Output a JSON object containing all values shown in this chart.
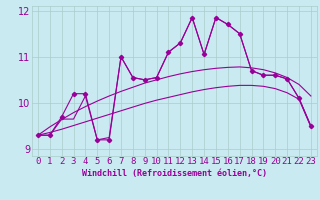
{
  "background_color": "#c8eaf0",
  "line_color": "#990099",
  "xlabel": "Windchill (Refroidissement éolien,°C)",
  "x_values": [
    0,
    1,
    2,
    3,
    4,
    5,
    6,
    7,
    8,
    9,
    10,
    11,
    12,
    13,
    14,
    15,
    16,
    17,
    18,
    19,
    20,
    21,
    22,
    23
  ],
  "line_marked": [
    9.3,
    9.3,
    9.7,
    10.2,
    10.2,
    9.2,
    9.2,
    11.0,
    10.55,
    10.5,
    10.55,
    11.1,
    11.3,
    11.85,
    11.05,
    11.85,
    11.7,
    11.5,
    10.7,
    10.6,
    10.6,
    10.52,
    10.1,
    9.5
  ],
  "line_nomark": [
    9.3,
    9.3,
    9.65,
    9.65,
    10.15,
    9.2,
    9.25,
    11.0,
    10.55,
    10.5,
    10.55,
    11.1,
    11.3,
    11.85,
    11.05,
    11.85,
    11.7,
    11.5,
    10.7,
    10.6,
    10.6,
    10.52,
    10.1,
    9.5
  ],
  "line_smooth_hi": [
    9.3,
    9.48,
    9.64,
    9.79,
    9.92,
    10.04,
    10.15,
    10.25,
    10.34,
    10.43,
    10.5,
    10.57,
    10.63,
    10.68,
    10.72,
    10.75,
    10.77,
    10.78,
    10.76,
    10.72,
    10.65,
    10.55,
    10.4,
    10.15
  ],
  "line_smooth_lo": [
    9.3,
    9.36,
    9.43,
    9.51,
    9.59,
    9.67,
    9.75,
    9.83,
    9.91,
    9.99,
    10.06,
    10.12,
    10.18,
    10.24,
    10.29,
    10.33,
    10.36,
    10.38,
    10.38,
    10.36,
    10.31,
    10.22,
    10.08,
    9.48
  ],
  "ylim": [
    8.85,
    12.1
  ],
  "yticks": [
    9,
    10,
    11,
    12
  ],
  "grid_color": "#aacccc",
  "line_width": 0.8,
  "marker": "D",
  "marker_size": 2.2,
  "tick_fontsize": 6.5,
  "xlabel_fontsize": 6.0
}
